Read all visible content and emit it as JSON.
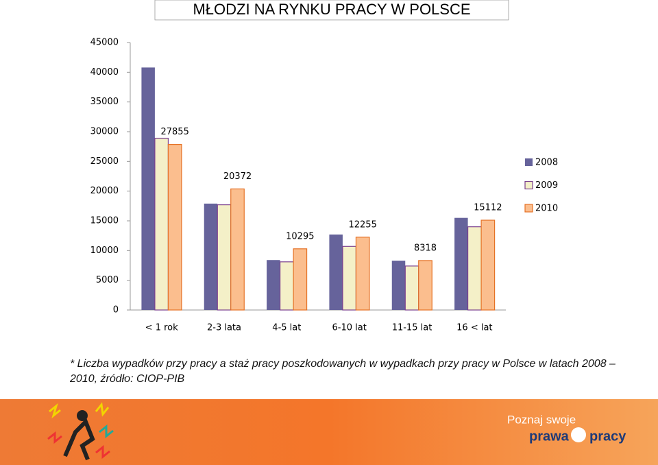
{
  "chart_data": {
    "type": "bar",
    "title": "MŁODZI NA RYNKU PRACY W POLSCE",
    "categories": [
      "< 1 rok",
      "2-3 lata",
      "4-5 lat",
      "6-10 lat",
      "11-15 lat",
      "16 < lat"
    ],
    "series": [
      {
        "name": "2008",
        "color": "#66639b",
        "values": [
          40800,
          17900,
          8400,
          12700,
          8300,
          15500
        ]
      },
      {
        "name": "2009",
        "color": "#f4f0c8",
        "border": "#7a3f8e",
        "values": [
          28900,
          17700,
          8100,
          10700,
          7400,
          14000
        ]
      },
      {
        "name": "2010",
        "color": "#fbbe8e",
        "border": "#e57226",
        "show_labels": true,
        "values": [
          27855,
          20372,
          10295,
          12255,
          8318,
          15112
        ]
      }
    ],
    "ylim": [
      0,
      45000
    ],
    "yticks": [
      0,
      5000,
      10000,
      15000,
      20000,
      25000,
      30000,
      35000,
      40000,
      45000
    ],
    "grid": false,
    "legend": "right"
  },
  "caption": "* Liczba wypadków przy pracy a staż pracy poszkodowanych w wypadkach przy pracy w Polsce w latach 2008 – 2010, źródło: CIOP-PIB",
  "footer": {
    "tagline": "Poznaj swoje",
    "logo_left": "prawa",
    "logo_right": "pracy"
  }
}
